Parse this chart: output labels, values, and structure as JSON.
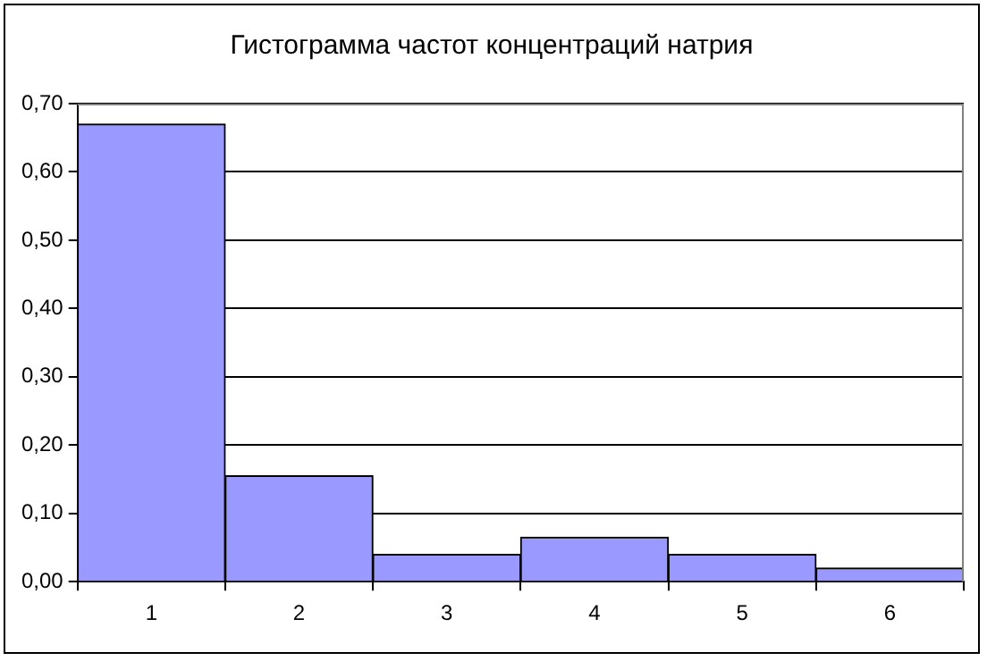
{
  "chart_data": {
    "type": "bar",
    "title": "Гистограмма частот концентраций натрия",
    "categories": [
      "1",
      "2",
      "3",
      "4",
      "5",
      "6"
    ],
    "values": [
      0.67,
      0.155,
      0.04,
      0.065,
      0.04,
      0.02
    ],
    "color": "#9999ff",
    "ylim": [
      0,
      0.7
    ],
    "yticks": [
      {
        "value": 0,
        "label": "0,00"
      },
      {
        "value": 0.1,
        "label": "0,10"
      },
      {
        "value": 0.2,
        "label": "0,20"
      },
      {
        "value": 0.3,
        "label": "0,30"
      },
      {
        "value": 0.4,
        "label": "0,40"
      },
      {
        "value": 0.5,
        "label": "0,50"
      },
      {
        "value": 0.6,
        "label": "0,60"
      },
      {
        "value": 0.7,
        "label": "0,70"
      }
    ],
    "grid": "y",
    "legend": false
  }
}
